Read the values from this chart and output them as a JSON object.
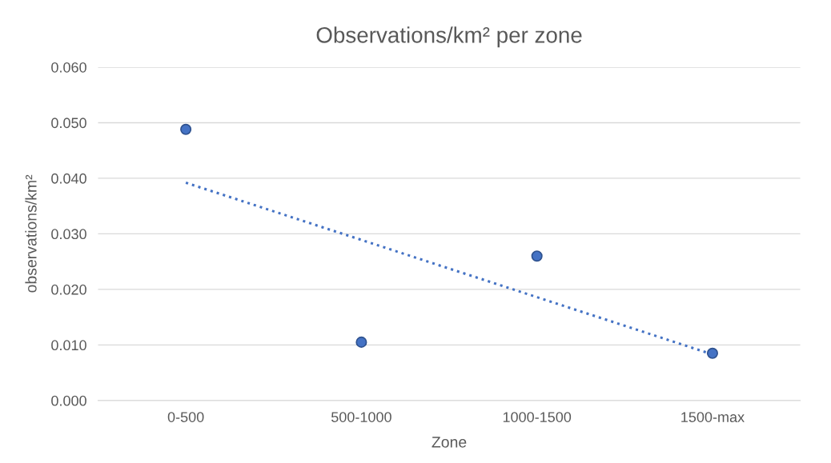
{
  "chart_data": {
    "type": "scatter",
    "title": "Observations/km² per zone",
    "xlabel": "Zone",
    "ylabel": "observations/km²",
    "categories": [
      "0-500",
      "500-1000",
      "1000-1500",
      "1500-max"
    ],
    "series": [
      {
        "color": "#4472c4",
        "values": [
          0.0488,
          0.0105,
          0.026,
          0.0085
        ],
        "marker": "circle"
      },
      {
        "type": "line",
        "color": "#4472c4",
        "values": [
          0.0392,
          0.0289,
          0.0186,
          0.0083
        ],
        "line_style": "dotted",
        "marker": "none"
      }
    ],
    "ylim": [
      0,
      0.06
    ],
    "yticks": [
      {
        "value": 0,
        "label": "0.000"
      },
      {
        "value": 0.01,
        "label": "0.010"
      },
      {
        "value": 0.02,
        "label": "0.020"
      },
      {
        "value": 0.03,
        "label": "0.030"
      },
      {
        "value": 0.04,
        "label": "0.040"
      },
      {
        "value": 0.05,
        "label": "0.050"
      },
      {
        "value": 0.06,
        "label": "0.060"
      }
    ],
    "grid": "y",
    "legend": false
  }
}
